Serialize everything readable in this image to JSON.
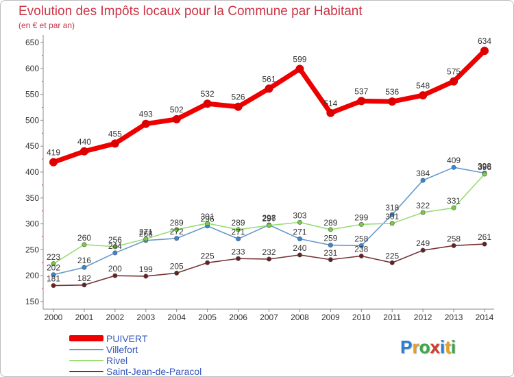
{
  "title": "Evolution des Impôts locaux pour la Commune par Habitant",
  "subtitle": "(en € et par an)",
  "logo": {
    "text": "Proxiti",
    "colors": [
      "#2a7fd4",
      "#e8a020",
      "#3aa84a",
      "#d43a2a",
      "#2a7fd4",
      "#e8a020",
      "#3aa84a"
    ]
  },
  "chart_data": {
    "type": "line",
    "x": [
      "2000",
      "2001",
      "2002",
      "2003",
      "2004",
      "2005",
      "2006",
      "2007",
      "2008",
      "2009",
      "2010",
      "2011",
      "2012",
      "2013",
      "2014"
    ],
    "ylim": [
      150,
      650
    ],
    "yticks": [
      150,
      200,
      250,
      300,
      350,
      400,
      450,
      500,
      550,
      600,
      650
    ],
    "grid": false,
    "legend_placement": "bottom-left",
    "series": [
      {
        "name": "PUIVERT",
        "color": "#ee0000",
        "marker": "#dd0000",
        "thick": true,
        "values": [
          419,
          440,
          455,
          493,
          502,
          532,
          526,
          561,
          599,
          514,
          537,
          536,
          548,
          575,
          634
        ]
      },
      {
        "name": "Villefort",
        "color": "#6699cc",
        "marker": "#3388dd",
        "thick": false,
        "values": [
          202,
          216,
          244,
          268,
          272,
          296,
          271,
          298,
          271,
          259,
          258,
          318,
          384,
          409,
          398
        ]
      },
      {
        "name": "Rivel",
        "color": "#99dd77",
        "marker": "#77cc44",
        "thick": false,
        "values": [
          223,
          260,
          256,
          271,
          289,
          301,
          289,
          297,
          303,
          289,
          299,
          301,
          322,
          331,
          396
        ]
      },
      {
        "name": "Saint-Jean-de-Paracol",
        "color": "#773333",
        "marker": "#662222",
        "thick": false,
        "values": [
          181,
          182,
          200,
          199,
          205,
          225,
          233,
          232,
          240,
          231,
          238,
          225,
          249,
          258,
          261
        ]
      }
    ]
  }
}
